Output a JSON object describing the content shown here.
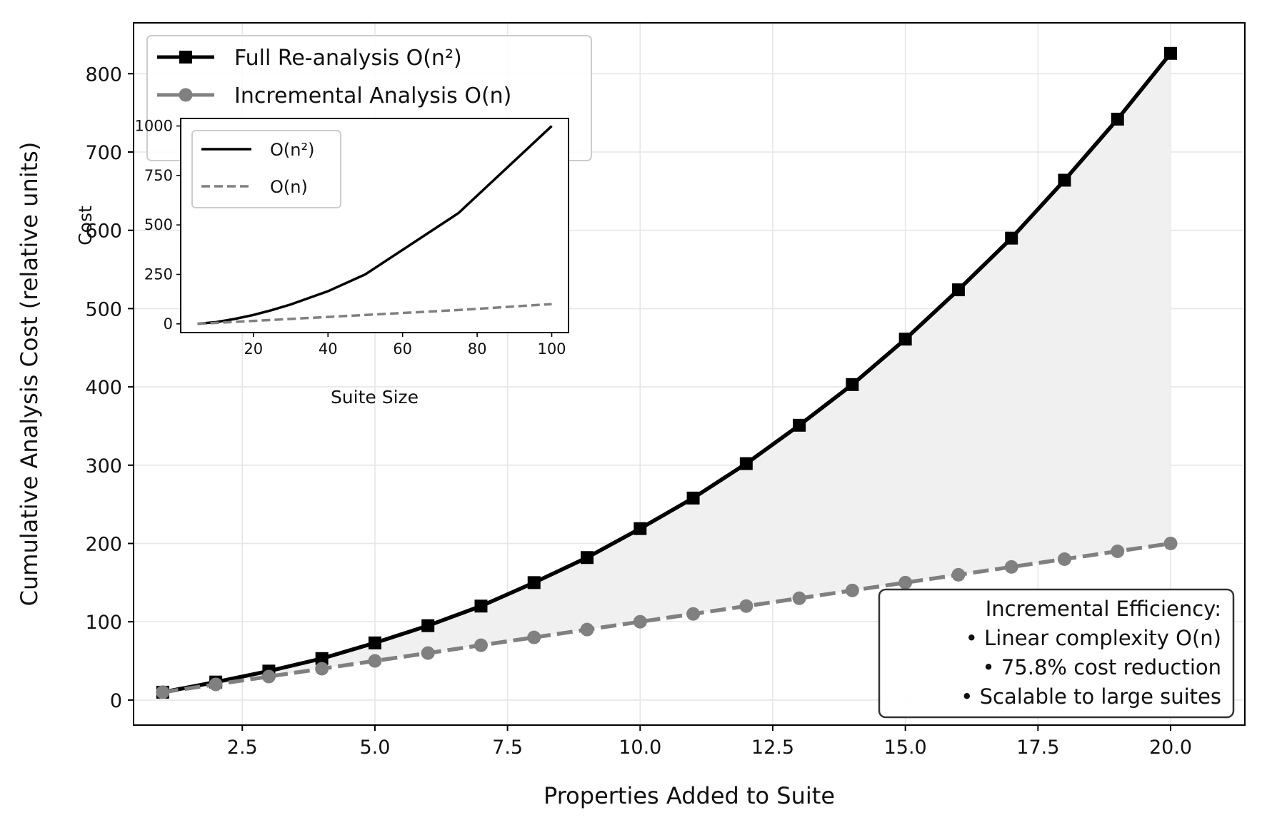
{
  "chart_data": [
    {
      "type": "line",
      "title": "",
      "xlabel": "Properties Added to Suite",
      "ylabel": "Cumulative Analysis Cost (relative units)",
      "xlim": [
        0.45,
        21.4
      ],
      "ylim": [
        -32,
        865
      ],
      "xticks": [
        2.5,
        5.0,
        7.5,
        10.0,
        12.5,
        15.0,
        17.5,
        20.0
      ],
      "xtick_labels": [
        "2.5",
        "5.0",
        "7.5",
        "10.0",
        "12.5",
        "15.0",
        "17.5",
        "20.0"
      ],
      "yticks": [
        0,
        100,
        200,
        300,
        400,
        500,
        600,
        700,
        800
      ],
      "ytick_labels": [
        "0",
        "100",
        "200",
        "300",
        "400",
        "500",
        "600",
        "700",
        "800"
      ],
      "grid": true,
      "legend_position": "top-left",
      "x": [
        1,
        2,
        3,
        4,
        5,
        6,
        7,
        8,
        9,
        10,
        11,
        12,
        13,
        14,
        15,
        16,
        17,
        18,
        19,
        20
      ],
      "series": [
        {
          "name": "Full Re-analysis O(n²)",
          "color": "#000000",
          "style": "solid",
          "marker": "square",
          "values": [
            10,
            23,
            37,
            53,
            73,
            95,
            120,
            150,
            182,
            219,
            258,
            302,
            351,
            403,
            461,
            524,
            590,
            664,
            742,
            826
          ]
        },
        {
          "name": "Incremental Analysis O(n)",
          "color": "#808080",
          "style": "dashed",
          "marker": "circle",
          "values": [
            10,
            20,
            30,
            40,
            50,
            60,
            70,
            80,
            90,
            100,
            110,
            120,
            130,
            140,
            150,
            160,
            170,
            180,
            190,
            200
          ]
        }
      ],
      "fill_between": {
        "color": "#f0f0f0",
        "between": [
          "Full Re-analysis O(n²)",
          "Incremental Analysis O(n)"
        ]
      },
      "annotation": {
        "lines": [
          "Incremental Efficiency:",
          "• Linear complexity O(n)",
          "• 75.8% cost reduction",
          "• Scalable to large suites"
        ],
        "position": "bottom-right"
      }
    },
    {
      "type": "line",
      "title": "",
      "xlabel": "Suite Size",
      "ylabel": "Cost",
      "xlim": [
        0.5,
        104.5
      ],
      "ylim": [
        -44,
        1038
      ],
      "xticks": [
        20,
        40,
        60,
        80,
        100
      ],
      "xtick_labels": [
        "20",
        "40",
        "60",
        "80",
        "100"
      ],
      "yticks": [
        0,
        250,
        500,
        750,
        1000
      ],
      "ytick_labels": [
        "0",
        "250",
        "500",
        "750",
        "1000"
      ],
      "legend_position": "top-left",
      "x": [
        5,
        10,
        15,
        20,
        25,
        30,
        40,
        50,
        75,
        100
      ],
      "series": [
        {
          "name": "O(n²)",
          "color": "#000000",
          "style": "solid",
          "values": [
            0,
            9,
            25,
            45,
            70,
            98,
            165,
            250,
            560,
            1000
          ]
        },
        {
          "name": "O(n)",
          "color": "#808080",
          "style": "dashed",
          "values": [
            0,
            5,
            10,
            15,
            20,
            25,
            35,
            45,
            70,
            100
          ]
        }
      ]
    }
  ]
}
